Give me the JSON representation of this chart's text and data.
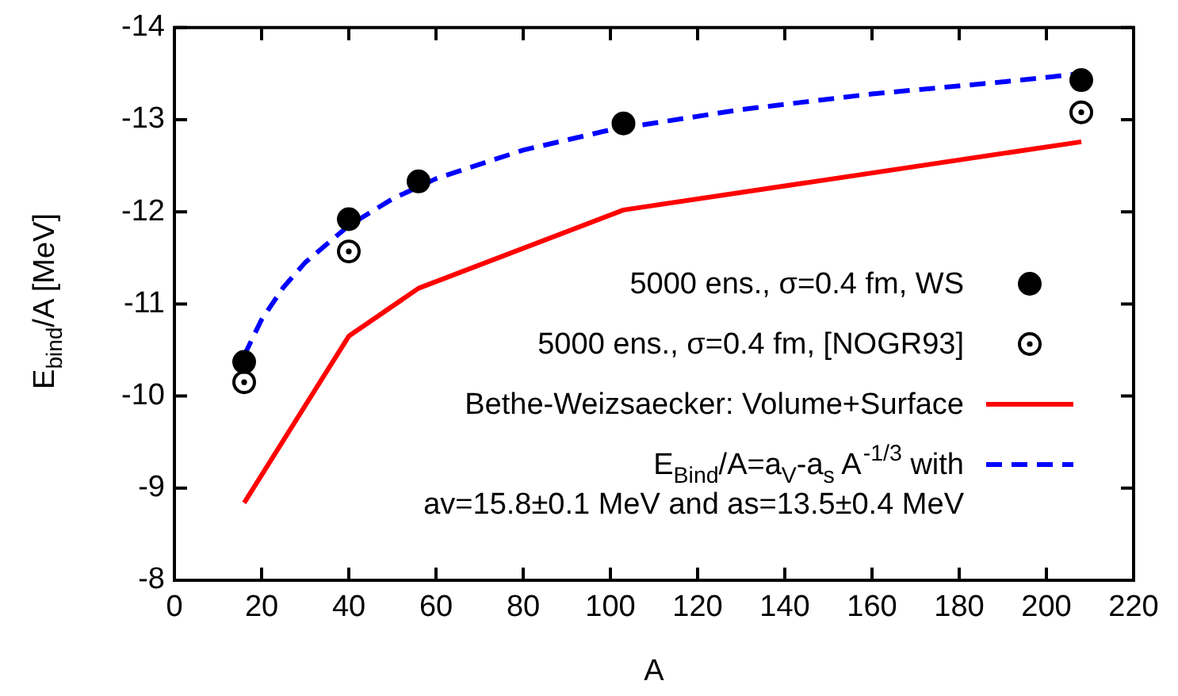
{
  "chart_data": {
    "type": "scatter",
    "xlabel": "A",
    "ylabel": "E$_{bind}$/A [MeV]",
    "xlim": [
      0,
      220
    ],
    "xticks": [
      0,
      20,
      40,
      60,
      80,
      100,
      120,
      140,
      160,
      180,
      200,
      220
    ],
    "ylim": [
      -8,
      -14
    ],
    "yticks": [
      -14,
      -13,
      -12,
      -11,
      -10,
      -9,
      -8
    ],
    "grid": false,
    "legend": "bottom right",
    "series": [
      {
        "name": "5000 ens., σ=0.4 fm, WS",
        "marker": "circle",
        "color": "#000000",
        "x": [
          16,
          40,
          56,
          103,
          208
        ],
        "values": [
          -10.37,
          -11.92,
          -12.33,
          -12.96,
          -13.43
        ]
      },
      {
        "name": "5000 ens., σ=0.4 fm, [NOGR93]",
        "marker": "circle-dot",
        "color": "#000000",
        "x": [
          16,
          40,
          208
        ],
        "values": [
          -10.15,
          -11.57,
          -13.08
        ]
      },
      {
        "name": "Bethe-Weizsaecker: Volume+Surface",
        "type": "line",
        "marker": "none",
        "line_style": "solid",
        "color": "#ff0000",
        "x": [
          16,
          40,
          56,
          103,
          208
        ],
        "values": [
          -8.84,
          -10.65,
          -11.17,
          -12.02,
          -12.76
        ]
      },
      {
        "name": "E$_{Bind}$/A=a$_{V}$-a$_{s}$ A$^{-1/3}$ with\nav=15.8±0.1 MeV and as=13.5±0.4 MeV",
        "type": "line",
        "marker": "none",
        "line_style": "dashed",
        "color": "#0000ff",
        "x": [
          16,
          20,
          25,
          30,
          40,
          50,
          60,
          80,
          100,
          130,
          160,
          190,
          208
        ],
        "values": [
          -10.44,
          -10.83,
          -11.18,
          -11.45,
          -11.85,
          -12.14,
          -12.36,
          -12.67,
          -12.89,
          -13.11,
          -13.28,
          -13.41,
          -13.5
        ]
      }
    ]
  }
}
